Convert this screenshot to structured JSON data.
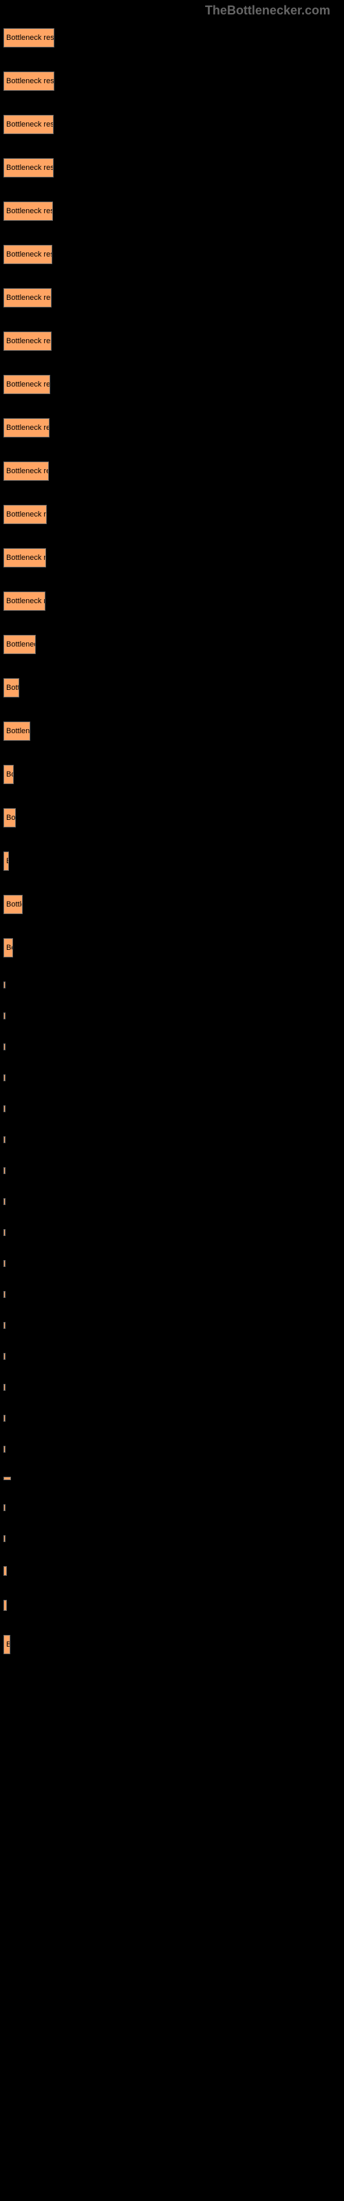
{
  "header": "TheBottlenecker.com",
  "chart": {
    "background_color": "#000000",
    "bar_color": "#ffa564",
    "text_color": "#000000",
    "label_color": "#ffffff",
    "header_color": "#666666",
    "bars": [
      {
        "label": "",
        "width": 74,
        "text": "Bottleneck result"
      },
      {
        "label": "",
        "width": 74,
        "text": "Bottleneck result"
      },
      {
        "label": "",
        "width": 73,
        "text": "Bottleneck result"
      },
      {
        "label": "",
        "width": 73,
        "text": "Bottleneck result"
      },
      {
        "label": "",
        "width": 72,
        "text": "Bottleneck result"
      },
      {
        "label": "",
        "width": 71,
        "text": "Bottleneck resul"
      },
      {
        "label": "",
        "width": 70,
        "text": "Bottleneck result"
      },
      {
        "label": "",
        "width": 70,
        "text": "Bottleneck result"
      },
      {
        "label": "",
        "width": 68,
        "text": "Bottleneck resul"
      },
      {
        "label": "",
        "width": 67,
        "text": "Bottleneck resu"
      },
      {
        "label": "",
        "width": 66,
        "text": "Bottleneck resu"
      },
      {
        "label": "",
        "width": 63,
        "text": "Bottleneck res"
      },
      {
        "label": "",
        "width": 62,
        "text": "Bottleneck res"
      },
      {
        "label": "",
        "width": 61,
        "text": "Bottleneck res"
      },
      {
        "label": "",
        "width": 47,
        "text": "Bottlenec"
      },
      {
        "label": "",
        "width": 23,
        "text": "Bott"
      },
      {
        "label": "",
        "width": 39,
        "text": "Bottlene"
      },
      {
        "label": "",
        "width": 15,
        "text": "Bo"
      },
      {
        "label": "",
        "width": 18,
        "text": "Bot"
      },
      {
        "label": "",
        "width": 8,
        "text": "B"
      },
      {
        "label": "",
        "width": 28,
        "text": "Bottle"
      },
      {
        "label": "",
        "width": 14,
        "text": "Bo"
      },
      {
        "label": "",
        "width": 0.5,
        "text": "",
        "thin": true
      },
      {
        "label": "",
        "width": 0.5,
        "text": "",
        "thin": true
      },
      {
        "label": "",
        "width": 0.5,
        "text": "",
        "thin": true
      },
      {
        "label": "",
        "width": 0.5,
        "text": "",
        "thin": true
      },
      {
        "label": "",
        "width": 0.5,
        "text": "",
        "thin": true
      },
      {
        "label": "",
        "width": 0.5,
        "text": "",
        "thin": true
      },
      {
        "label": "",
        "width": 0.5,
        "text": "",
        "thin": true
      },
      {
        "label": "",
        "width": 0.5,
        "text": "",
        "thin": true
      },
      {
        "label": "",
        "width": 0.5,
        "text": "",
        "thin": true
      },
      {
        "label": "",
        "width": 0.5,
        "text": "",
        "thin": true
      },
      {
        "label": "",
        "width": 0.5,
        "text": "",
        "thin": true
      },
      {
        "label": "",
        "width": 0.5,
        "text": "",
        "thin": true
      },
      {
        "label": "",
        "width": 0.5,
        "text": "",
        "thin": true
      },
      {
        "label": "",
        "width": 0.5,
        "text": "",
        "thin": true
      },
      {
        "label": "",
        "width": 0.5,
        "text": "",
        "thin": true
      },
      {
        "label": "",
        "width": 0.5,
        "text": "",
        "thin": true
      },
      {
        "label": "",
        "width": 11,
        "text": "",
        "height": 5
      },
      {
        "label": "",
        "width": 0.5,
        "text": "",
        "thin": true
      },
      {
        "label": "",
        "width": 0.5,
        "text": "",
        "thin": true
      },
      {
        "label": "",
        "width": 4,
        "text": "",
        "height": 14
      },
      {
        "label": "",
        "width": 5,
        "text": "",
        "height": 16
      },
      {
        "label": "",
        "width": 10,
        "text": "B"
      }
    ]
  }
}
